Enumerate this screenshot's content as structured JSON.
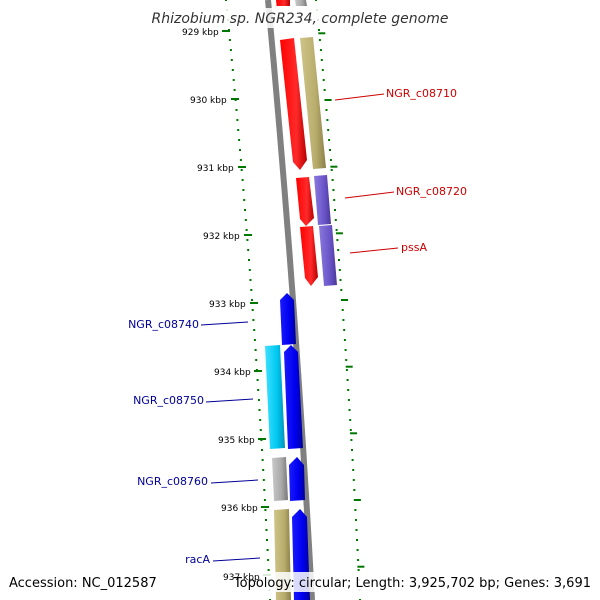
{
  "title": "Rhizobium sp. NGR234, complete genome",
  "accession": "Accession: NC_012587",
  "summary": "Topology: circular; Length: 3,925,702 bp; Genes: 3,691",
  "ticks": [
    "929 kbp",
    "930 kbp",
    "931 kbp",
    "932 kbp",
    "933 kbp",
    "934 kbp",
    "935 kbp",
    "936 kbp",
    "937 kbp"
  ],
  "genes": [
    {
      "label": "NGR_c08710",
      "strand": "reverse",
      "color": "#cc0000"
    },
    {
      "label": "NGR_c08720",
      "strand": "reverse",
      "color": "#cc0000"
    },
    {
      "label": "pssA",
      "strand": "reverse",
      "color": "#cc0000"
    },
    {
      "label": "NGR_c08740",
      "strand": "forward",
      "color": "#000099"
    },
    {
      "label": "NGR_c08750",
      "strand": "forward",
      "color": "#000099"
    },
    {
      "label": "NGR_c08760",
      "strand": "forward",
      "color": "#000099"
    },
    {
      "label": "racA",
      "strand": "forward",
      "color": "#000099"
    }
  ],
  "colors": {
    "reverse_gene": "#ff0000",
    "forward_gene": "#0000ff",
    "cds_olive": "#b8ad6c",
    "cds_purple": "#6a55c8",
    "cds_cyan": "#00c8f0",
    "cds_gray": "#a8a8a8",
    "backbone": "#808080",
    "ticks": "#007700"
  }
}
